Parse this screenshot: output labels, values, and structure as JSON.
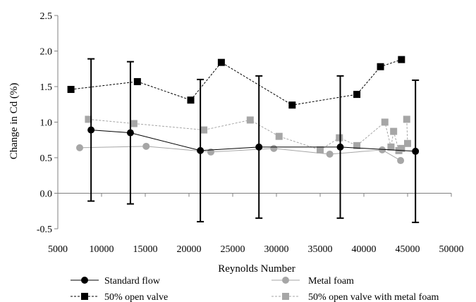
{
  "chart_data": {
    "type": "scatter",
    "xlabel": "Reynolds Number",
    "ylabel": "Change in Cd (%)",
    "xlim": [
      5000,
      50000
    ],
    "ylim": [
      -0.5,
      2.5
    ],
    "x_ticks": [
      "5000",
      "10000",
      "15000",
      "20000",
      "25000",
      "30000",
      "35000",
      "40000",
      "45000",
      "50000"
    ],
    "y_ticks": [
      "-0.5",
      "0.0",
      "0.5",
      "1.0",
      "1.5",
      "2.0",
      "2.5"
    ],
    "grid": false,
    "legend_position": "bottom",
    "series": [
      {
        "name": "Standard flow",
        "marker": "circle",
        "line": "solid",
        "color": "#000000",
        "error_bar": 1.0,
        "points": [
          {
            "x": 8800,
            "y": 0.89
          },
          {
            "x": 13300,
            "y": 0.85
          },
          {
            "x": 21300,
            "y": 0.6
          },
          {
            "x": 28000,
            "y": 0.65
          },
          {
            "x": 37300,
            "y": 0.65
          },
          {
            "x": 45900,
            "y": 0.59
          }
        ]
      },
      {
        "name": "Metal foam",
        "marker": "circle",
        "line": "solid",
        "color": "#a6a6a6",
        "points": [
          {
            "x": 7500,
            "y": 0.64
          },
          {
            "x": 15100,
            "y": 0.66
          },
          {
            "x": 22500,
            "y": 0.58
          },
          {
            "x": 29700,
            "y": 0.63
          },
          {
            "x": 36100,
            "y": 0.55
          },
          {
            "x": 42100,
            "y": 0.61
          },
          {
            "x": 44200,
            "y": 0.46
          }
        ]
      },
      {
        "name": "50% open valve",
        "marker": "square",
        "line": "dashed",
        "color": "#000000",
        "points": [
          {
            "x": 6500,
            "y": 1.46
          },
          {
            "x": 14100,
            "y": 1.57
          },
          {
            "x": 20200,
            "y": 1.31
          },
          {
            "x": 23700,
            "y": 1.84
          },
          {
            "x": 31800,
            "y": 1.24
          },
          {
            "x": 39200,
            "y": 1.39
          },
          {
            "x": 41900,
            "y": 1.78
          },
          {
            "x": 44300,
            "y": 1.88
          }
        ]
      },
      {
        "name": "50% open valve with metal foam",
        "marker": "square",
        "line": "dashed",
        "color": "#a6a6a6",
        "points": [
          {
            "x": 8500,
            "y": 1.04
          },
          {
            "x": 13700,
            "y": 0.98
          },
          {
            "x": 21700,
            "y": 0.89
          },
          {
            "x": 27000,
            "y": 1.03
          },
          {
            "x": 30300,
            "y": 0.8
          },
          {
            "x": 35000,
            "y": 0.61
          },
          {
            "x": 37200,
            "y": 0.78
          },
          {
            "x": 39200,
            "y": 0.67
          },
          {
            "x": 42400,
            "y": 1.0
          },
          {
            "x": 43100,
            "y": 0.65
          },
          {
            "x": 43400,
            "y": 0.87
          },
          {
            "x": 44000,
            "y": 0.6
          },
          {
            "x": 44300,
            "y": 0.63
          },
          {
            "x": 45000,
            "y": 0.7
          },
          {
            "x": 44900,
            "y": 1.04
          }
        ]
      }
    ]
  }
}
